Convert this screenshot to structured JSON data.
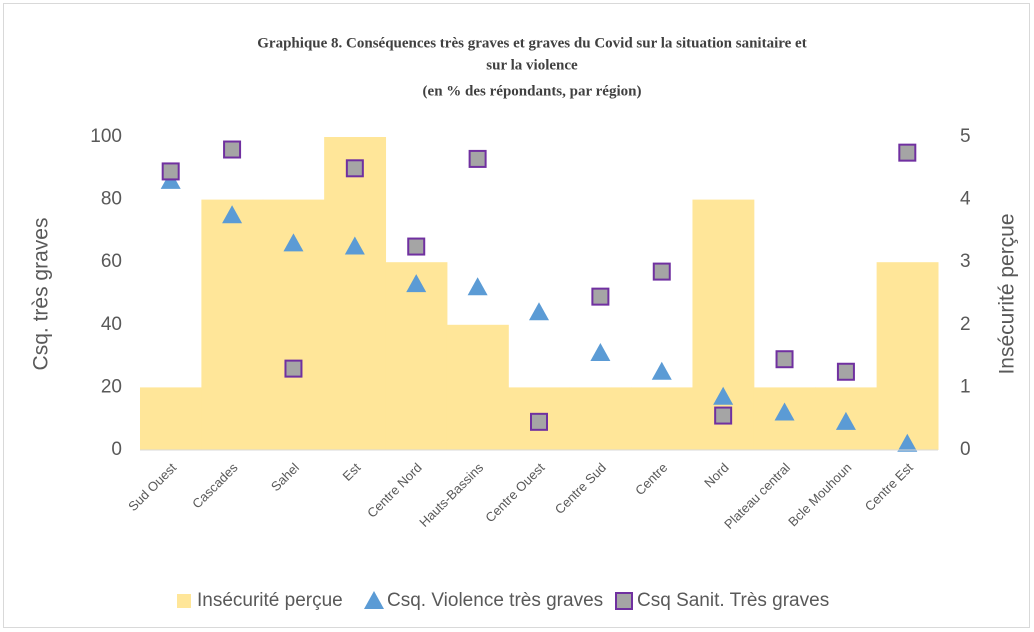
{
  "chart_data": {
    "type": "combo",
    "title": [
      "Graphique 8. Conséquences très graves et graves du Covid sur la situation sanitaire et",
      "sur la violence"
    ],
    "subtitle": "(en % des répondants, par région)",
    "ylabel": "Csq. très graves",
    "y2label": "Insécurité perçue",
    "categories": [
      "Sud Ouest",
      "Cascades",
      "Sahel",
      "Est",
      "Centre Nord",
      "Hauts-Bassins",
      "Centre Ouest",
      "Centre Sud",
      "Centre",
      "Nord",
      "Plateau central",
      "Bcle Mouhoun",
      "Centre Est"
    ],
    "series": [
      {
        "name": "Insécurité perçue",
        "type": "bar",
        "axis": "y2",
        "color": "#ffe699",
        "values": [
          1,
          4,
          4,
          5,
          3,
          2,
          1,
          1,
          1,
          4,
          1,
          1,
          3
        ]
      },
      {
        "name": "Csq. Violence très graves",
        "type": "scatter",
        "marker": "triangle",
        "color": "#5b9bd5",
        "values": [
          86,
          75,
          66,
          65,
          53,
          52,
          44,
          31,
          25,
          17,
          12,
          9,
          2
        ]
      },
      {
        "name": "Csq Sanit. Très graves",
        "type": "scatter",
        "marker": "square",
        "color": "#a5a5a5",
        "edge": "#7030a0",
        "values": [
          89,
          96,
          26,
          90,
          65,
          93,
          9,
          49,
          57,
          11,
          29,
          25,
          95
        ]
      }
    ],
    "ylim": [
      0,
      100
    ],
    "yticks": [
      0,
      20,
      40,
      60,
      80,
      100
    ],
    "y2lim": [
      0,
      5
    ],
    "y2ticks": [
      0,
      1,
      2,
      3,
      4,
      5
    ],
    "legend": "bottom"
  }
}
